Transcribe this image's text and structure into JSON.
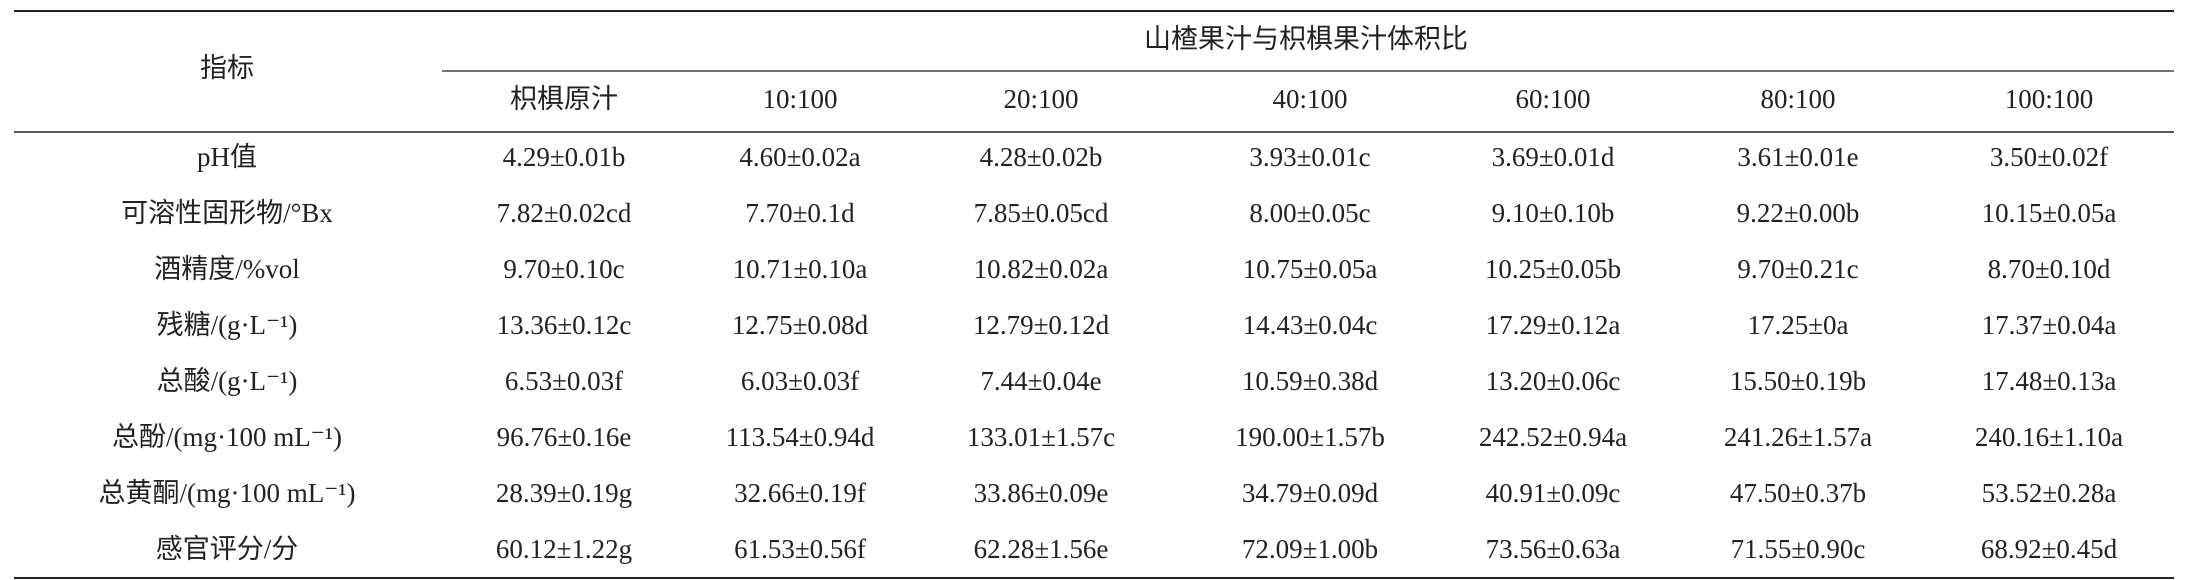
{
  "table": {
    "header": {
      "index": "指标",
      "group": "山楂果汁与枳椇果汁体积比",
      "columns": [
        "枳椇原汁",
        "10:100",
        "20:100",
        "40:100",
        "60:100",
        "80:100",
        "100:100"
      ]
    },
    "rows": [
      {
        "label": "pH值",
        "cells": [
          "4.29±0.01b",
          "4.60±0.02a",
          "4.28±0.02b",
          "3.93±0.01c",
          "3.69±0.01d",
          "3.61±0.01e",
          "3.50±0.02f"
        ]
      },
      {
        "label": "可溶性固形物/°Bx",
        "cells": [
          "7.82±0.02cd",
          "7.70±0.1d",
          "7.85±0.05cd",
          "8.00±0.05c",
          "9.10±0.10b",
          "9.22±0.00b",
          "10.15±0.05a"
        ]
      },
      {
        "label": "酒精度/%vol",
        "cells": [
          "9.70±0.10c",
          "10.71±0.10a",
          "10.82±0.02a",
          "10.75±0.05a",
          "10.25±0.05b",
          "9.70±0.21c",
          "8.70±0.10d"
        ]
      },
      {
        "label": "残糖/(g·L⁻¹)",
        "cells": [
          "13.36±0.12c",
          "12.75±0.08d",
          "12.79±0.12d",
          "14.43±0.04c",
          "17.29±0.12a",
          "17.25±0a",
          "17.37±0.04a"
        ]
      },
      {
        "label": "总酸/(g·L⁻¹)",
        "cells": [
          "6.53±0.03f",
          "6.03±0.03f",
          "7.44±0.04e",
          "10.59±0.38d",
          "13.20±0.06c",
          "15.50±0.19b",
          "17.48±0.13a"
        ]
      },
      {
        "label": "总酚/(mg·100 mL⁻¹)",
        "cells": [
          "96.76±0.16e",
          "113.54±0.94d",
          "133.01±1.57c",
          "190.00±1.57b",
          "242.52±0.94a",
          "241.26±1.57a",
          "240.16±1.10a"
        ]
      },
      {
        "label": "总黄酮/(mg·100 mL⁻¹)",
        "cells": [
          "28.39±0.19g",
          "32.66±0.19f",
          "33.86±0.09e",
          "34.79±0.09d",
          "40.91±0.09c",
          "47.50±0.37b",
          "53.52±0.28a"
        ]
      },
      {
        "label": "感官评分/分",
        "cells": [
          "60.12±1.22g",
          "61.53±0.56f",
          "62.28±1.56e",
          "72.09±1.00b",
          "73.56±0.63a",
          "71.55±0.90c",
          "68.92±0.45d"
        ]
      }
    ]
  }
}
